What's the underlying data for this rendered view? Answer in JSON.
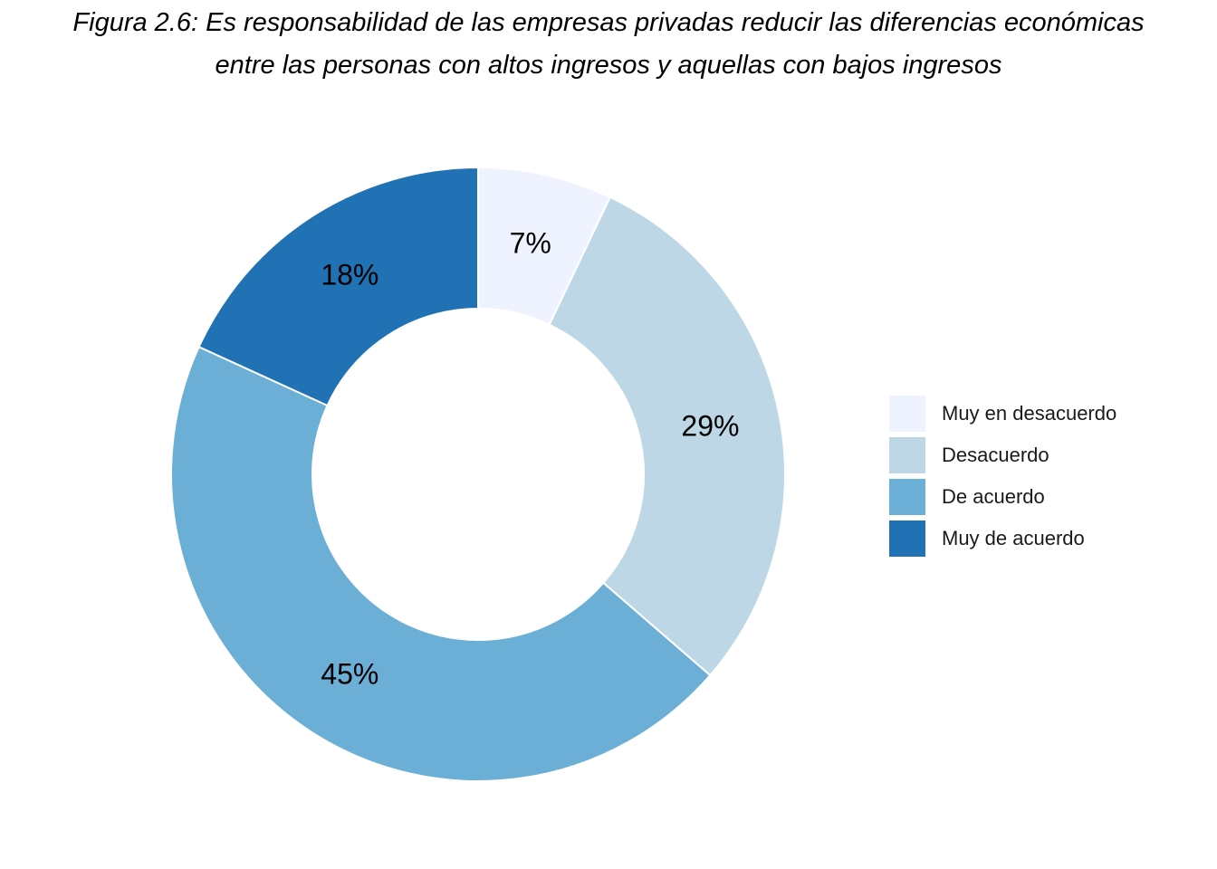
{
  "chart_data": {
    "type": "pie",
    "donut": true,
    "title_lines": [
      "Figura 2.6: Es responsabilidad de las empresas privadas reducir las diferencias económicas",
      "entre las personas con altos ingresos y aquellas con bajos ingresos"
    ],
    "categories": [
      "Muy en desacuerdo",
      "Desacuerdo",
      "De acuerdo",
      "Muy de acuerdo"
    ],
    "values": [
      7,
      29,
      45,
      18
    ],
    "labels": [
      "7%",
      "29%",
      "45%",
      "18%"
    ],
    "colors": [
      "#EFF3FF",
      "#BDD7E7",
      "#6BAED6",
      "#2171B5"
    ],
    "legend_position": "right"
  }
}
